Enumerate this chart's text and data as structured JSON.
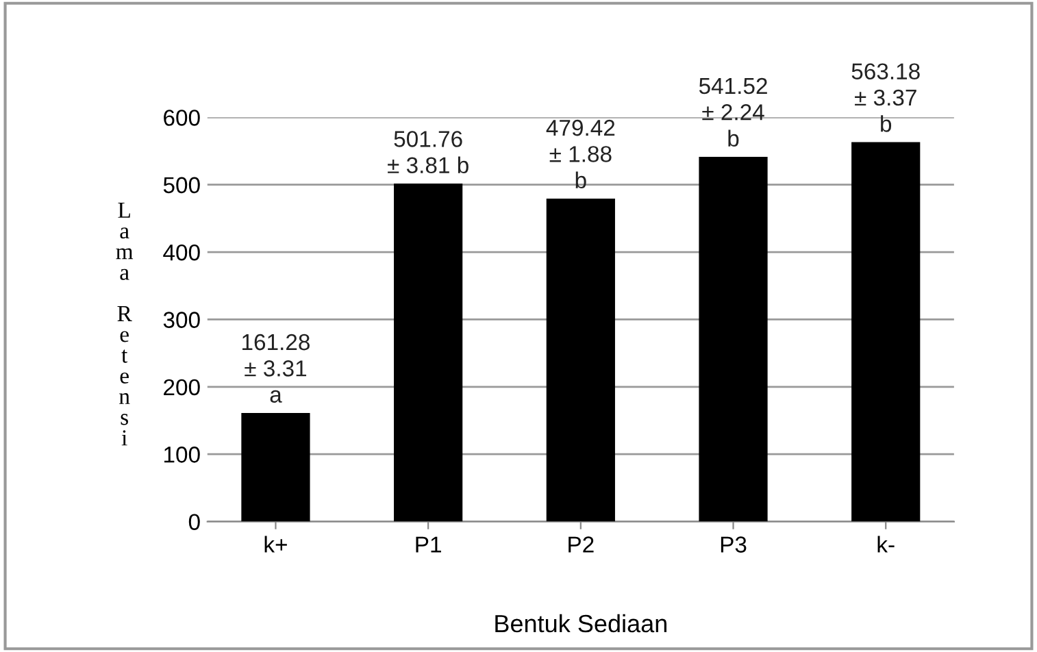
{
  "chart_data": {
    "type": "bar",
    "xlabel": "Bentuk Sediaan",
    "ylabel": "Lama Retensi",
    "categories": [
      "k+",
      "P1",
      "P2",
      "P3",
      "k-"
    ],
    "values": [
      161.28,
      501.76,
      479.42,
      541.52,
      563.18
    ],
    "value_labels": [
      "161.28\n± 3.31\na",
      "501.76\n± 3.81 b",
      "479.42\n± 1.88\nb",
      "541.52\n± 2.24\nb",
      "563.18\n± 3.37\nb"
    ],
    "color": "#000000",
    "ylim": [
      0,
      600
    ],
    "yticks": [
      0,
      100,
      200,
      300,
      400,
      500,
      600
    ],
    "grid": "y",
    "legend": false
  }
}
